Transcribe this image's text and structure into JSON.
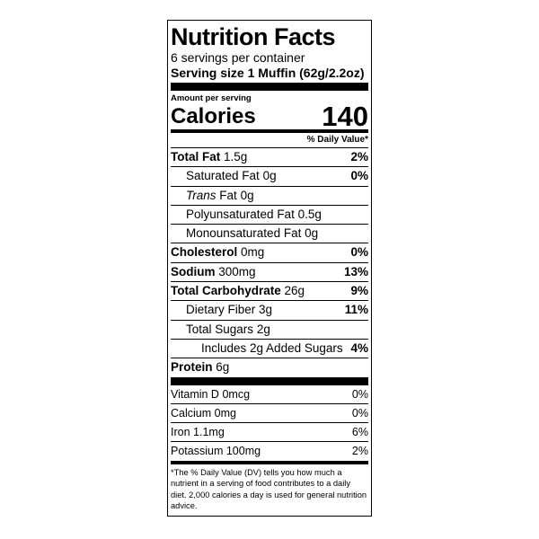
{
  "title": "Nutrition Facts",
  "servings": "6 servings per container",
  "serving_size": {
    "label": "Serving size",
    "value": "1 Muffin (62g/2.2oz)"
  },
  "amount_per_serving": "Amount per serving",
  "calories": {
    "label": "Calories",
    "value": "140"
  },
  "dv_header": "% Daily Value*",
  "nutrients": [
    {
      "name": "Total Fat",
      "amount": "1.5g",
      "dv": "2%"
    },
    {
      "name": "Saturated Fat",
      "amount": "0g",
      "dv": "0%"
    },
    {
      "name_italic": "Trans",
      "name": "Fat",
      "amount": "0g"
    },
    {
      "name": "Polyunsaturated Fat",
      "amount": "0.5g"
    },
    {
      "name": "Monounsaturated Fat",
      "amount": "0g"
    },
    {
      "name": "Cholesterol",
      "amount": "0mg",
      "dv": "0%"
    },
    {
      "name": "Sodium",
      "amount": "300mg",
      "dv": "13%"
    },
    {
      "name": "Total Carbohydrate",
      "amount": "26g",
      "dv": "9%"
    },
    {
      "name": "Dietary Fiber",
      "amount": "3g",
      "dv": "11%"
    },
    {
      "name": "Total Sugars",
      "amount": "2g"
    },
    {
      "text": "Includes 2g Added Sugars",
      "dv": "4%"
    },
    {
      "name": "Protein",
      "amount": "6g"
    }
  ],
  "vitamins": [
    {
      "name": "Vitamin D",
      "amount": "0mcg",
      "dv": "0%"
    },
    {
      "name": "Calcium",
      "amount": "0mg",
      "dv": "0%"
    },
    {
      "name": "Iron",
      "amount": "1.1mg",
      "dv": "6%"
    },
    {
      "name": "Potassium",
      "amount": "100mg",
      "dv": "2%"
    }
  ],
  "footnote": "*The % Daily Value (DV) tells you how much a nutrient in a serving of food contributes to a daily diet. 2,000 calories a day is used for general nutrition advice."
}
